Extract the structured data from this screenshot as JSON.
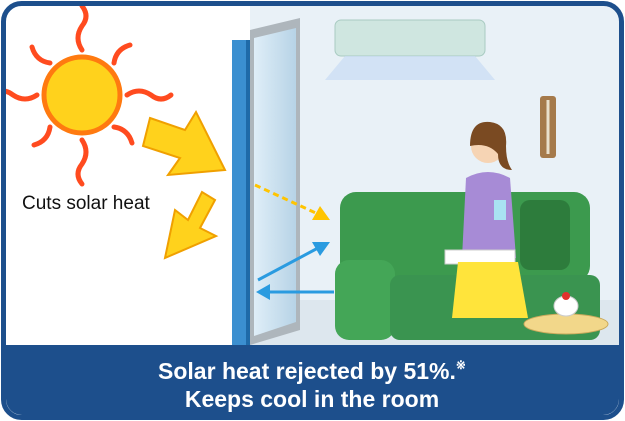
{
  "illustration": {
    "label": "Cuts solar heat"
  },
  "caption": {
    "line1": "Solar heat rejected by 51%.",
    "note_mark": "※",
    "line2": "Keeps cool in the room"
  }
}
